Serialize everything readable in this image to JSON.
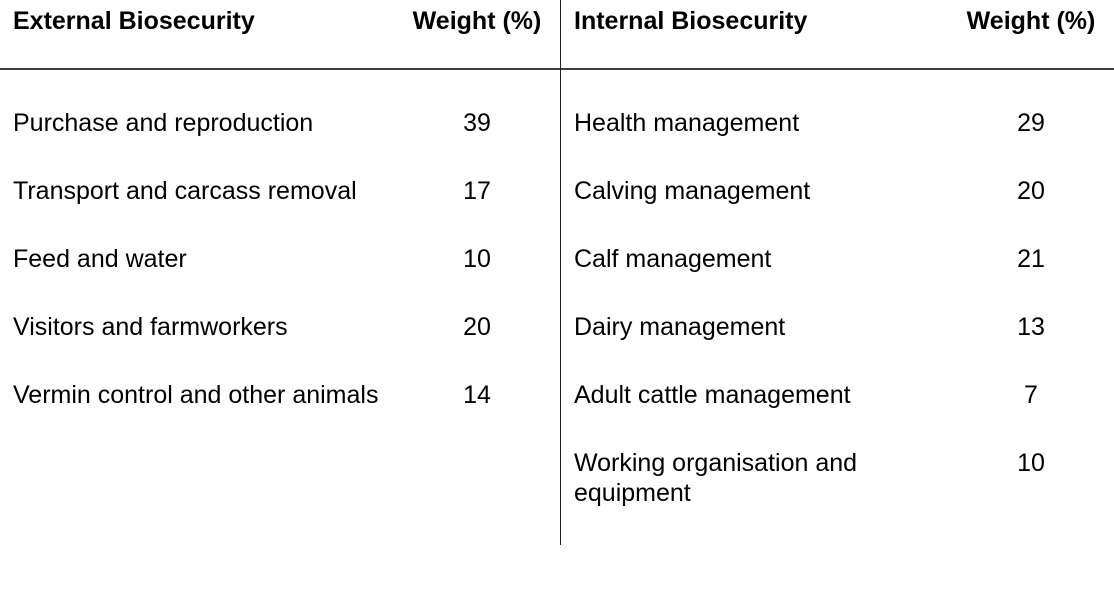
{
  "table": {
    "left": {
      "header": {
        "category": "External Biosecurity",
        "weight": "Weight (%)"
      },
      "rows": [
        {
          "label": "Purchase and reproduction",
          "value": "39"
        },
        {
          "label": "Transport and carcass removal",
          "value": "17"
        },
        {
          "label": "Feed and water",
          "value": "10"
        },
        {
          "label": "Visitors and farmworkers",
          "value": "20"
        },
        {
          "label": "Vermin control and other animals",
          "value": "14"
        }
      ]
    },
    "right": {
      "header": {
        "category": "Internal Biosecurity",
        "weight": "Weight (%)"
      },
      "rows": [
        {
          "label": "Health management",
          "value": "29"
        },
        {
          "label": "Calving management",
          "value": "20"
        },
        {
          "label": "Calf management",
          "value": "21"
        },
        {
          "label": "Dairy management",
          "value": "13"
        },
        {
          "label": "Adult cattle management",
          "value": "7"
        },
        {
          "label": "Working organisation and equipment",
          "value": "10"
        }
      ]
    }
  },
  "colors": {
    "background": "#ffffff",
    "text": "#000000",
    "header_rule": "#3d3d3d",
    "panel_divider": "#1f1f1f"
  }
}
